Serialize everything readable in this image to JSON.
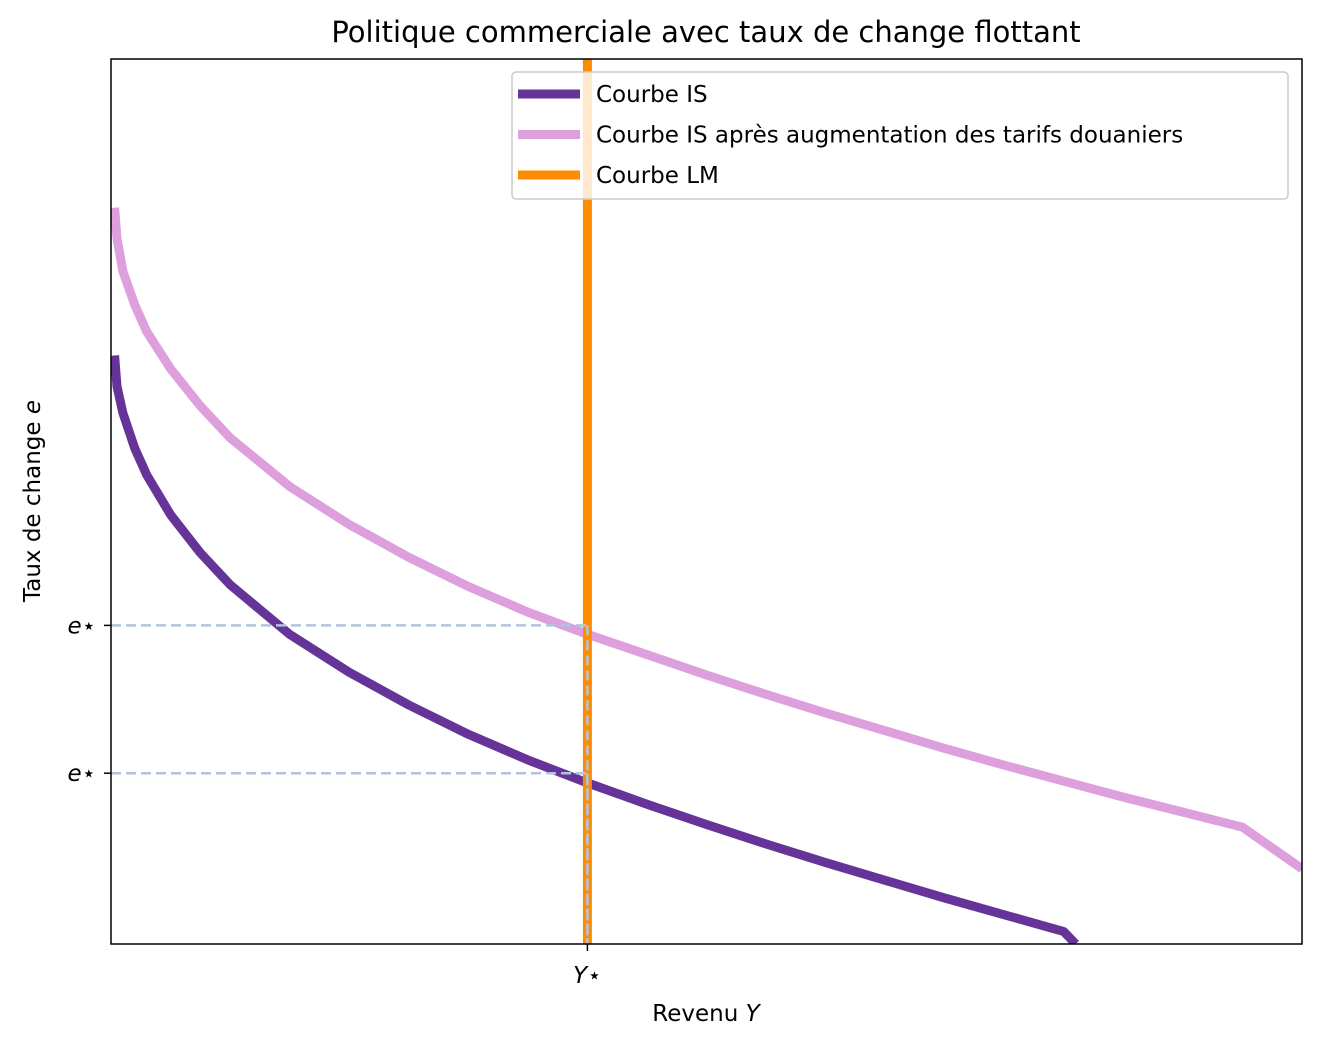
{
  "chart_data": {
    "type": "line",
    "title": "Politique commerciale avec taux de change flottant",
    "xlabel": "Revenu",
    "xlabel_var": "Y",
    "ylabel": "Taux de change",
    "ylabel_var": "e",
    "xlim": [
      0,
      10
    ],
    "ylim": [
      0,
      10
    ],
    "grid": false,
    "legend_position": "top-right",
    "x_ticks": [
      {
        "value": 4,
        "label": "Y⋆"
      }
    ],
    "y_ticks": [
      {
        "value": 3.6,
        "label": "e⋆"
      },
      {
        "value": 1.93,
        "label": "e⋆"
      }
    ],
    "series": [
      {
        "name": "Courbe IS",
        "color": "#663399",
        "x": [
          0.03,
          0.05,
          0.1,
          0.2,
          0.3,
          0.5,
          0.75,
          1.0,
          1.5,
          2.0,
          2.5,
          3.0,
          3.5,
          4.0,
          4.5,
          5.0,
          5.5,
          6.0,
          6.5,
          7.0,
          7.5,
          8.0,
          8.1
        ],
        "y": [
          6.65,
          6.3,
          6.0,
          5.6,
          5.3,
          4.85,
          4.42,
          4.06,
          3.5,
          3.07,
          2.7,
          2.37,
          2.08,
          1.82,
          1.58,
          1.35,
          1.13,
          0.92,
          0.72,
          0.52,
          0.33,
          0.14,
          0.0
        ]
      },
      {
        "name": "Courbe IS après augmentation des tarifs douaniers",
        "color": "#dda0dd",
        "x": [
          0.03,
          0.05,
          0.1,
          0.2,
          0.3,
          0.5,
          0.75,
          1.0,
          1.5,
          2.0,
          2.5,
          3.0,
          3.5,
          4.0,
          4.5,
          5.0,
          5.5,
          6.0,
          6.5,
          7.0,
          7.5,
          8.0,
          8.5,
          9.0,
          9.5,
          10.0
        ],
        "y": [
          8.32,
          7.97,
          7.6,
          7.22,
          6.92,
          6.5,
          6.08,
          5.72,
          5.17,
          4.74,
          4.37,
          4.04,
          3.75,
          3.5,
          3.27,
          3.04,
          2.82,
          2.61,
          2.41,
          2.21,
          2.02,
          1.84,
          1.66,
          1.49,
          1.32,
          0.85
        ]
      },
      {
        "name": "Courbe LM",
        "color": "#ff8c00",
        "x": [
          4.0,
          4.0
        ],
        "y": [
          0,
          10
        ]
      }
    ],
    "reference_lines": {
      "color": "#b0c4de",
      "points": [
        {
          "x": 4.0,
          "y": 3.6
        },
        {
          "x": 4.0,
          "y": 1.93
        }
      ]
    }
  }
}
